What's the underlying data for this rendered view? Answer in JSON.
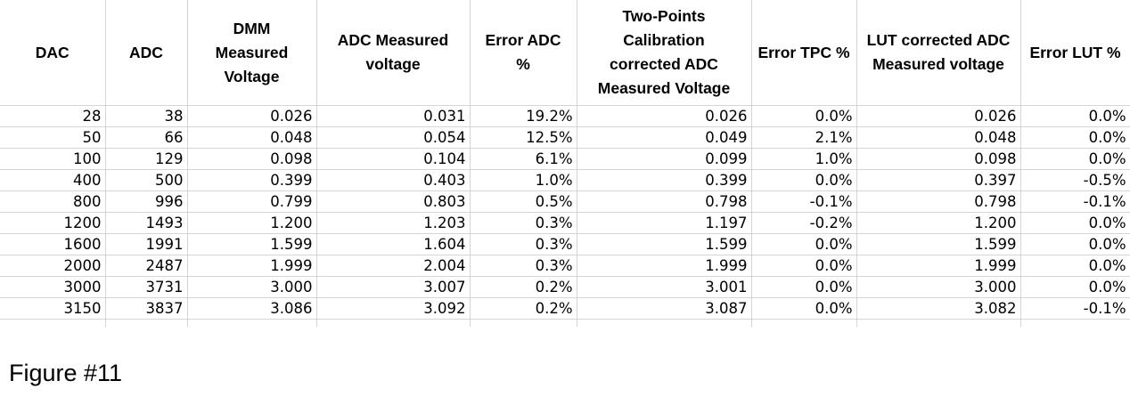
{
  "table": {
    "headers": [
      "DAC",
      "ADC",
      "DMM\nMeasured\nVoltage",
      "ADC Measured\nvoltage",
      "Error ADC\n%",
      "Two-Points\nCalibration\ncorrected ADC\nMeasured Voltage",
      "Error TPC %",
      "LUT corrected ADC\nMeasured voltage",
      "Error LUT %"
    ],
    "rows": [
      [
        "28",
        "38",
        "0.026",
        "0.031",
        "19.2%",
        "0.026",
        "0.0%",
        "0.026",
        "0.0%"
      ],
      [
        "50",
        "66",
        "0.048",
        "0.054",
        "12.5%",
        "0.049",
        "2.1%",
        "0.048",
        "0.0%"
      ],
      [
        "100",
        "129",
        "0.098",
        "0.104",
        "6.1%",
        "0.099",
        "1.0%",
        "0.098",
        "0.0%"
      ],
      [
        "400",
        "500",
        "0.399",
        "0.403",
        "1.0%",
        "0.399",
        "0.0%",
        "0.397",
        "-0.5%"
      ],
      [
        "800",
        "996",
        "0.799",
        "0.803",
        "0.5%",
        "0.798",
        "-0.1%",
        "0.798",
        "-0.1%"
      ],
      [
        "1200",
        "1493",
        "1.200",
        "1.203",
        "0.3%",
        "1.197",
        "-0.2%",
        "1.200",
        "0.0%"
      ],
      [
        "1600",
        "1991",
        "1.599",
        "1.604",
        "0.3%",
        "1.599",
        "0.0%",
        "1.599",
        "0.0%"
      ],
      [
        "2000",
        "2487",
        "1.999",
        "2.004",
        "0.3%",
        "1.999",
        "0.0%",
        "1.999",
        "0.0%"
      ],
      [
        "3000",
        "3731",
        "3.000",
        "3.007",
        "0.2%",
        "3.001",
        "0.0%",
        "3.000",
        "0.0%"
      ],
      [
        "3150",
        "3837",
        "3.086",
        "3.092",
        "0.2%",
        "3.087",
        "0.0%",
        "3.082",
        "-0.1%"
      ]
    ]
  },
  "caption": "Figure #11"
}
